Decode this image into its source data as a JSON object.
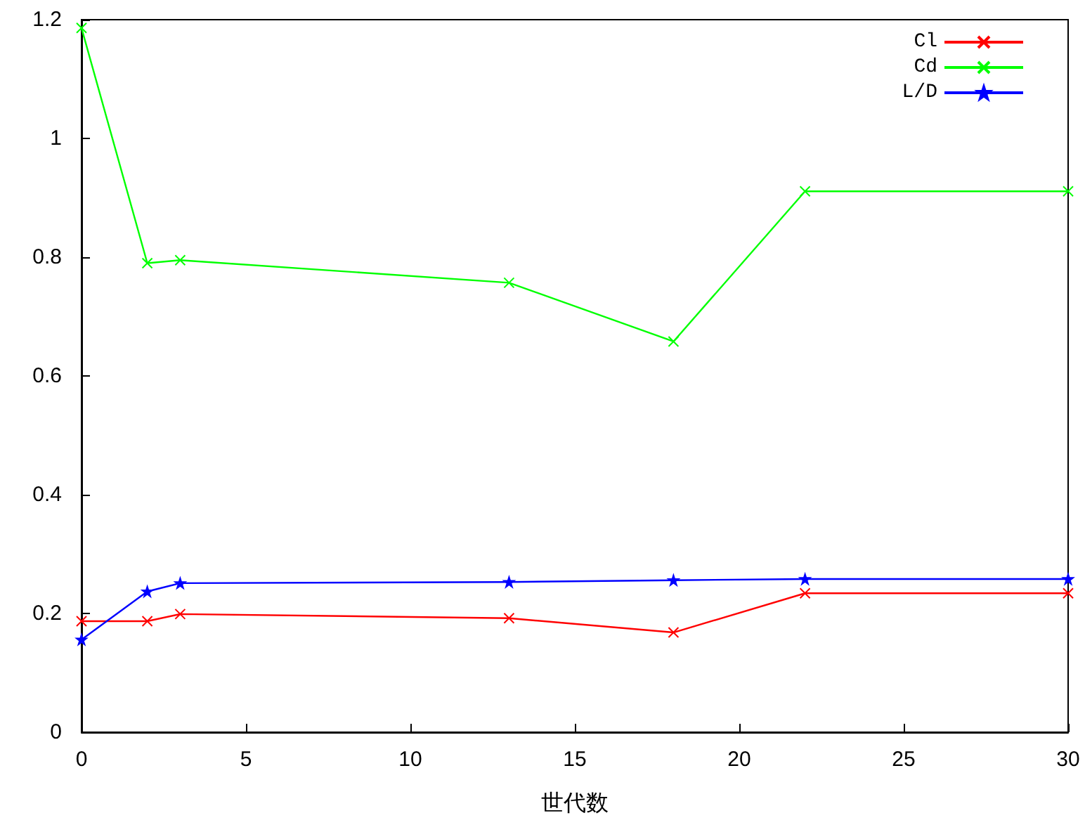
{
  "chart_data": {
    "type": "line",
    "xlabel": "世代数",
    "xlim": [
      0,
      30
    ],
    "xticks": [
      0,
      5,
      10,
      15,
      20,
      25,
      30
    ],
    "ylim": [
      0,
      1.2
    ],
    "yticks": [
      0,
      {
        "value": 0.2,
        "label": "0.2"
      },
      {
        "value": 0.4,
        "label": "0.4"
      },
      {
        "value": 0.6,
        "label": "0.6"
      },
      {
        "value": 0.8,
        "label": "0.8"
      },
      1,
      {
        "value": 1.2,
        "label": "1.2"
      }
    ],
    "grid": false,
    "legend": "top right",
    "x": [
      0,
      2,
      3,
      13,
      18,
      22,
      30
    ],
    "series": [
      {
        "name": "Cl",
        "color": "#ff0000",
        "marker": "cross",
        "values": [
          0.187,
          0.187,
          0.199,
          0.192,
          0.168,
          0.234,
          0.234
        ]
      },
      {
        "name": "Cd",
        "color": "#00ff00",
        "marker": "cross",
        "values": [
          1.186,
          0.79,
          0.795,
          0.757,
          0.658,
          0.911,
          0.911
        ]
      },
      {
        "name": "L/D",
        "color": "#0000ff",
        "marker": "star",
        "values": [
          0.156,
          0.237,
          0.251,
          0.253,
          0.256,
          0.258,
          0.258
        ]
      }
    ]
  }
}
